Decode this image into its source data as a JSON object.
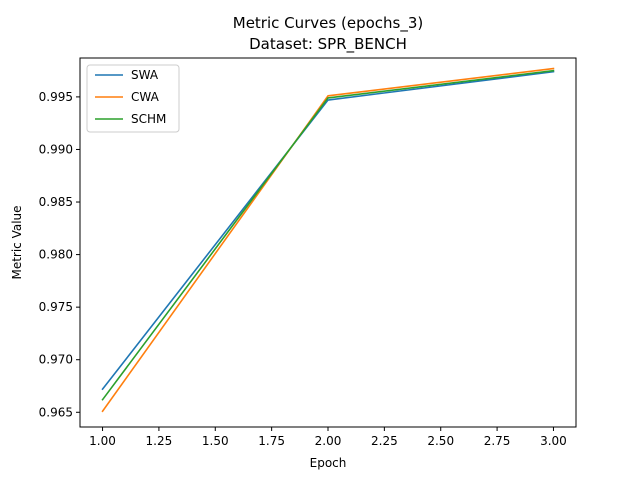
{
  "chart_data": {
    "type": "line",
    "title": "Metric Curves (epochs_3)",
    "subtitle": "Dataset: SPR_BENCH",
    "xlabel": "Epoch",
    "ylabel": "Metric Value",
    "xlim": [
      0.9,
      3.1
    ],
    "ylim": [
      0.9636,
      0.9987
    ],
    "xticks": [
      1.0,
      1.25,
      1.5,
      1.75,
      2.0,
      2.25,
      2.5,
      2.75,
      3.0
    ],
    "xtick_labels": [
      "1.00",
      "1.25",
      "1.50",
      "1.75",
      "2.00",
      "2.25",
      "2.50",
      "2.75",
      "3.00"
    ],
    "yticks": [
      0.965,
      0.97,
      0.975,
      0.98,
      0.985,
      0.99,
      0.995
    ],
    "ytick_labels": [
      "0.965",
      "0.970",
      "0.975",
      "0.980",
      "0.985",
      "0.990",
      "0.995"
    ],
    "grid": false,
    "legend_position": "top-left",
    "x": [
      1,
      2,
      3
    ],
    "series": [
      {
        "name": "SWA",
        "values": [
          0.9672,
          0.9947,
          0.9974
        ],
        "color": "#1f77b4"
      },
      {
        "name": "CWA",
        "values": [
          0.9651,
          0.9951,
          0.9977
        ],
        "color": "#ff7f0e"
      },
      {
        "name": "SCHM",
        "values": [
          0.9662,
          0.9949,
          0.9975
        ],
        "color": "#2ca02c"
      }
    ]
  }
}
